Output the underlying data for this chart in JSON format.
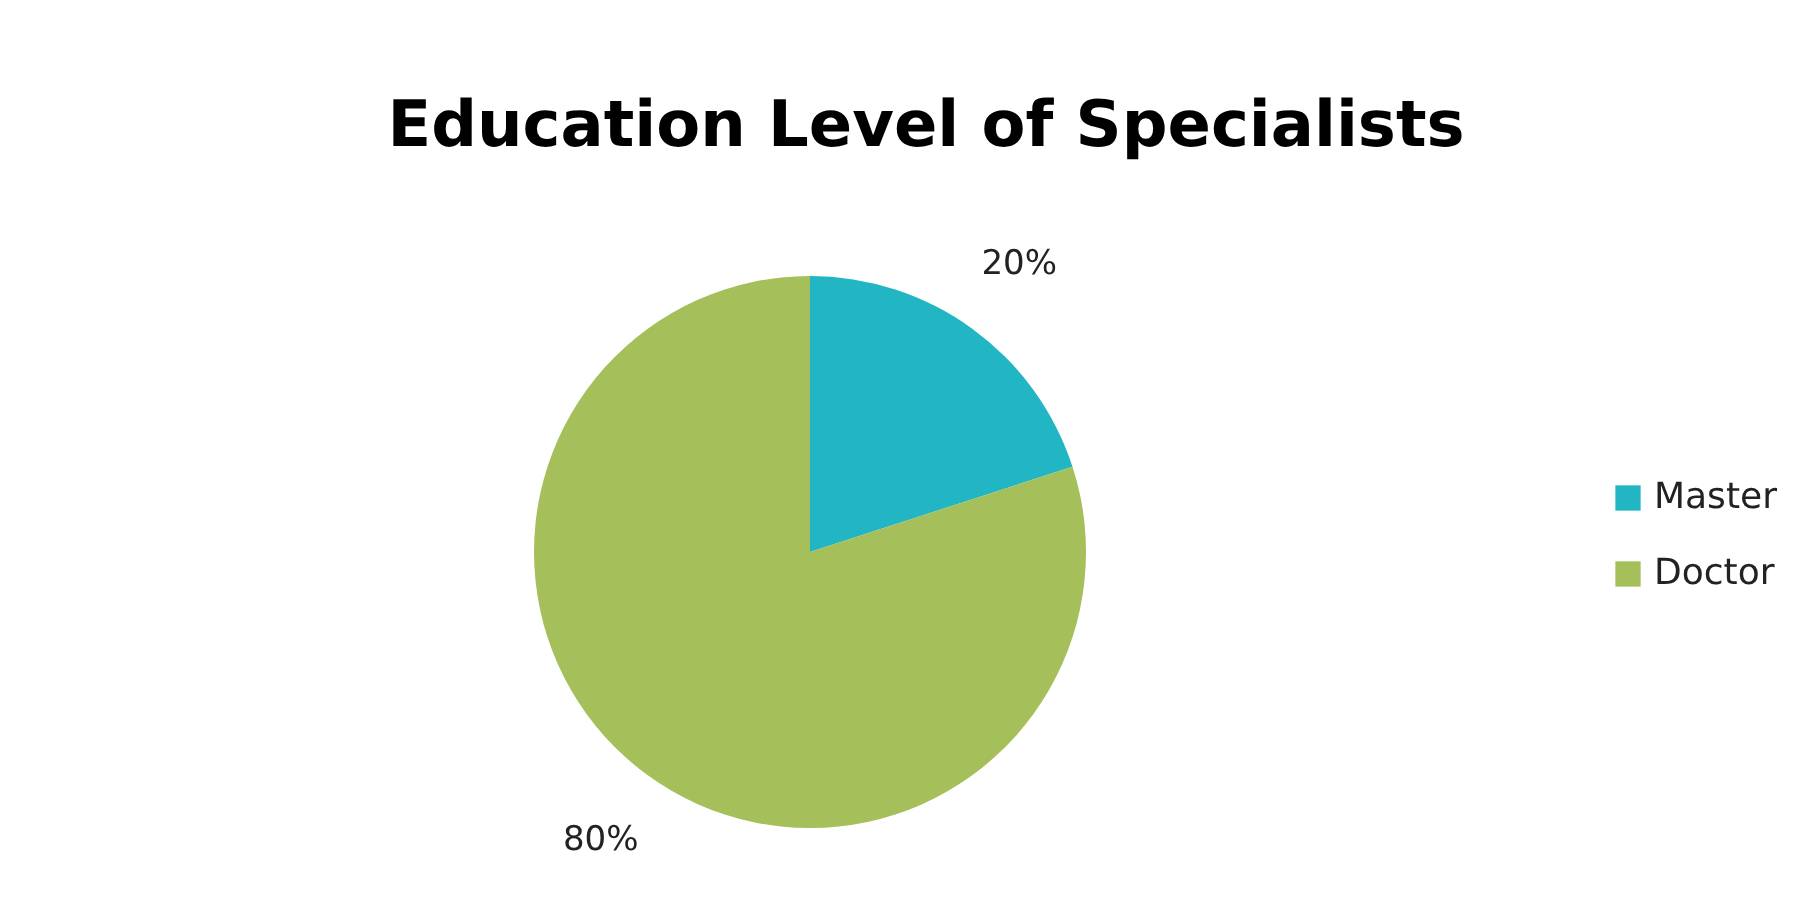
{
  "chart_data": {
    "type": "pie",
    "title": "Education Level of Specialists",
    "categories": [
      "Master",
      "Doctor"
    ],
    "values": [
      20,
      80
    ],
    "colors": [
      "#22b5c4",
      "#a5bf5a"
    ],
    "value_labels": [
      "20%",
      "80%"
    ],
    "legend": "right"
  }
}
